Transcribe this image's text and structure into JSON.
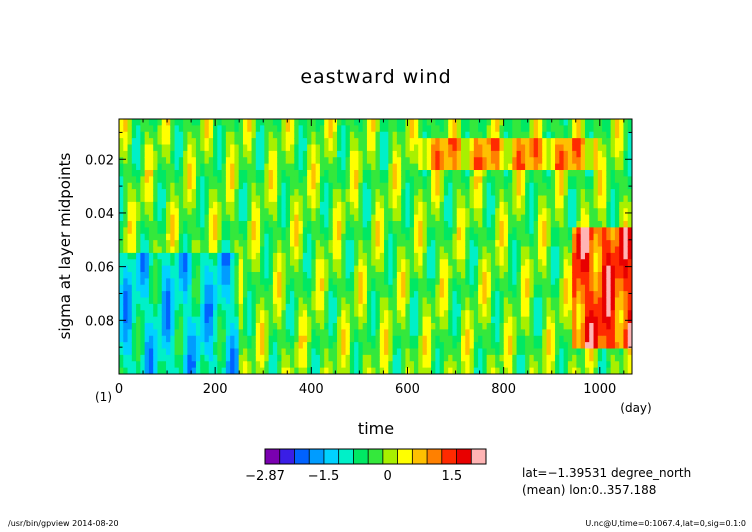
{
  "chart_data": {
    "type": "heatmap",
    "title": "eastward wind",
    "xlabel": "time",
    "x_unit": "(day)",
    "ylabel": "sigma at layer midpoints",
    "y_unit": "(1)",
    "xlim": [
      0,
      1067
    ],
    "ylim": [
      0.1,
      0.005
    ],
    "x_ticks": [
      0,
      200,
      400,
      600,
      800,
      1000
    ],
    "x_tick_labels": [
      "0",
      "200",
      "400",
      "600",
      "800",
      "1000"
    ],
    "y_ticks": [
      0.02,
      0.04,
      0.06,
      0.08
    ],
    "y_tick_labels": [
      "0.02",
      "0.04",
      "0.06",
      "0.08"
    ],
    "colorbar": {
      "min": -2.87,
      "max": 2.3,
      "tick_values": [
        -2.87,
        -1.5,
        0,
        1.5
      ],
      "tick_labels": [
        "−2.87",
        "−1.5",
        "0",
        "1.5"
      ],
      "colors": [
        "#7a00b0",
        "#3a1ee6",
        "#0062ff",
        "#009cff",
        "#00d2ff",
        "#00f0c8",
        "#00e864",
        "#34e83c",
        "#a8f000",
        "#ffff00",
        "#ffc000",
        "#ff8000",
        "#ff2a00",
        "#e80000",
        "#ffb4b4"
      ]
    },
    "field_regions": [
      {
        "time": [
          0,
          1067
        ],
        "sigma": [
          0.005,
          0.1
        ],
        "value": -0.2
      },
      {
        "time": [
          620,
          1000
        ],
        "sigma": [
          0.012,
          0.025
        ],
        "value": 1.0
      },
      {
        "time": [
          940,
          1067
        ],
        "sigma": [
          0.045,
          0.09
        ],
        "value": 1.6
      },
      {
        "time": [
          0,
          250
        ],
        "sigma": [
          0.055,
          0.1
        ],
        "value": -0.9
      }
    ]
  },
  "annotations": {
    "lat": "lat=−1.39531 degree_north",
    "mean": "(mean) lon:0..357.188",
    "footer_left": "/usr/bin/gpview  2014-08-20",
    "footer_right": "U.nc@U,time=0:1067.4,lat=0,sig=0.1:0"
  }
}
